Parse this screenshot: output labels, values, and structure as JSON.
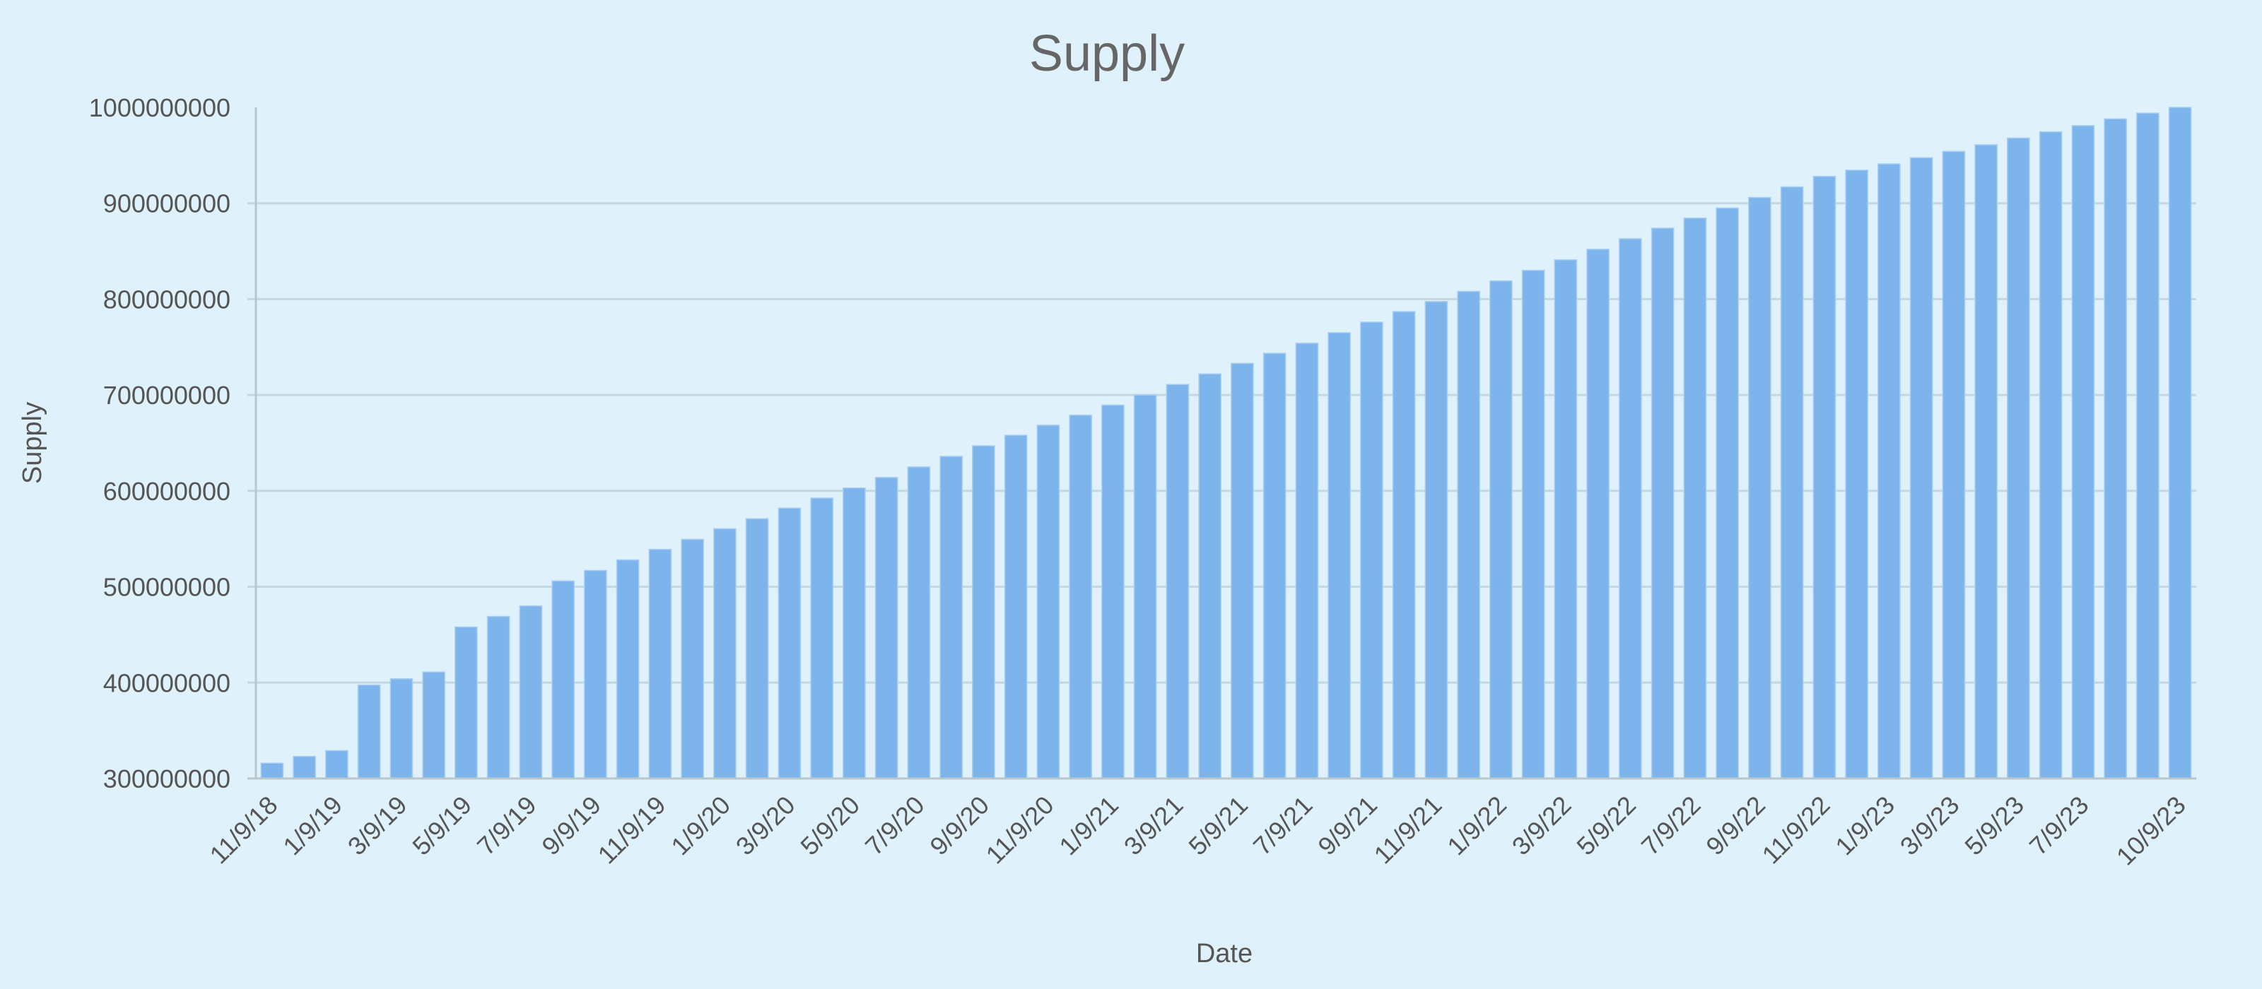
{
  "chart_data": {
    "type": "bar",
    "title": "Supply",
    "xlabel": "Date",
    "ylabel": "Supply",
    "ylim": [
      300000000,
      1000000000
    ],
    "yticks": [
      300000000,
      400000000,
      500000000,
      600000000,
      700000000,
      800000000,
      900000000,
      1000000000
    ],
    "ytick_labels": [
      "300000000",
      "400000000",
      "500000000",
      "600000000",
      "700000000",
      "800000000",
      "900000000",
      "1000000000"
    ],
    "grid": true,
    "legend": null,
    "bar_color": "#7cb4eb",
    "background_color": "#dff1fa",
    "categories": [
      "11/9/18",
      "12/9/18",
      "1/9/19",
      "2/9/19",
      "3/9/19",
      "4/9/19",
      "5/9/19",
      "6/9/19",
      "7/9/19",
      "8/9/19",
      "9/9/19",
      "10/9/19",
      "11/9/19",
      "12/9/19",
      "1/9/20",
      "2/9/20",
      "3/9/20",
      "4/9/20",
      "5/9/20",
      "6/9/20",
      "7/9/20",
      "8/9/20",
      "9/9/20",
      "10/9/20",
      "11/9/20",
      "12/9/20",
      "1/9/21",
      "2/9/21",
      "3/9/21",
      "4/9/21",
      "5/9/21",
      "6/9/21",
      "7/9/21",
      "8/9/21",
      "9/9/21",
      "10/9/21",
      "11/9/21",
      "12/9/21",
      "1/9/22",
      "2/9/22",
      "3/9/22",
      "4/9/22",
      "5/9/22",
      "6/9/22",
      "7/9/22",
      "8/9/22",
      "9/9/22",
      "10/9/22",
      "11/9/22",
      "12/9/22",
      "1/9/23",
      "2/9/23",
      "3/9/23",
      "4/9/23",
      "5/9/23",
      "6/9/23",
      "7/9/23",
      "8/9/23",
      "9/9/23",
      "10/9/23"
    ],
    "visible_xtick_labels": [
      "11/9/18",
      "1/9/19",
      "3/9/19",
      "5/9/19",
      "7/9/19",
      "9/9/19",
      "11/9/19",
      "1/9/20",
      "3/9/20",
      "5/9/20",
      "7/9/20",
      "9/9/20",
      "11/9/20",
      "1/9/21",
      "3/9/21",
      "5/9/21",
      "7/9/21",
      "9/9/21",
      "11/9/21",
      "1/9/22",
      "3/9/22",
      "5/9/22",
      "7/9/22",
      "9/9/22",
      "11/9/22",
      "1/9/23",
      "3/9/23",
      "5/9/23",
      "7/9/23",
      "10/9/23"
    ],
    "visible_xtick_indices": [
      0,
      2,
      4,
      6,
      8,
      10,
      12,
      14,
      16,
      18,
      20,
      22,
      24,
      26,
      28,
      30,
      32,
      34,
      36,
      38,
      40,
      42,
      44,
      46,
      48,
      50,
      52,
      54,
      56,
      59
    ],
    "values": [
      316000000,
      323000000,
      329000000,
      397500000,
      404000000,
      411000000,
      458000000,
      469000000,
      480000000,
      506000000,
      517000000,
      528000000,
      539000000,
      549500000,
      560500000,
      571000000,
      582000000,
      592500000,
      603000000,
      614000000,
      625000000,
      636000000,
      647000000,
      658000000,
      668500000,
      679000000,
      689500000,
      700000000,
      711000000,
      722000000,
      733000000,
      743500000,
      754000000,
      765000000,
      776000000,
      787000000,
      797500000,
      808000000,
      819000000,
      830000000,
      841000000,
      852000000,
      863000000,
      874000000,
      884500000,
      895000000,
      906000000,
      917000000,
      928000000,
      934500000,
      941000000,
      947500000,
      954000000,
      961000000,
      968000000,
      974500000,
      981000000,
      988000000,
      994000000,
      1000000000
    ]
  }
}
